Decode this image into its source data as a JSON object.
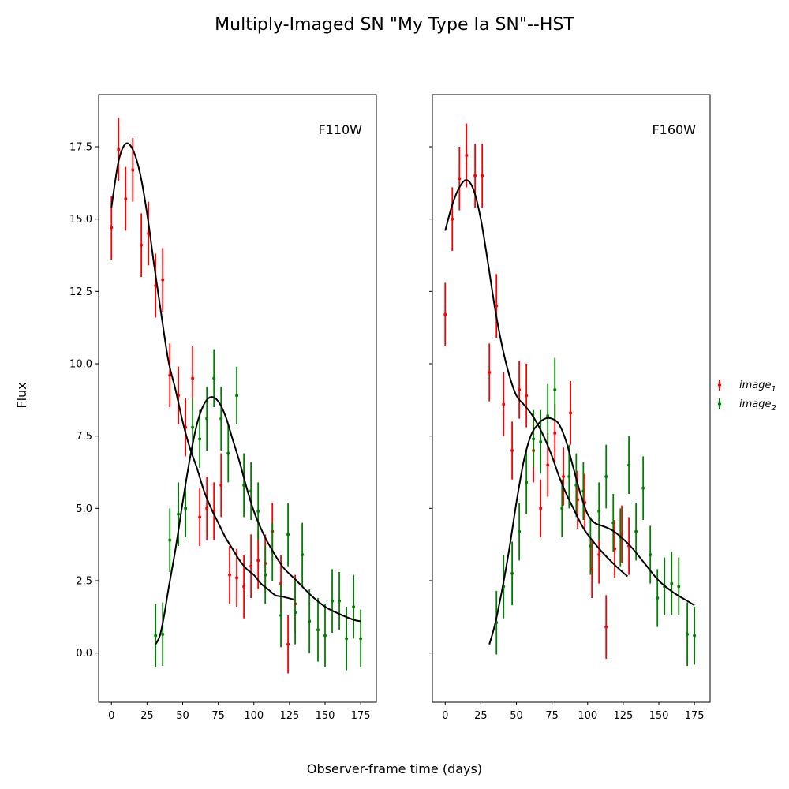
{
  "figure": {
    "title": "Multiply-Imaged SN \"My Type Ia SN\"--HST",
    "xlabel": "Observer-frame time (days)",
    "ylabel": "Flux"
  },
  "legend": {
    "placement": "right-center",
    "entries": [
      {
        "label": "image",
        "sub": "1",
        "color": "#ff0000"
      },
      {
        "label": "image",
        "sub": "2",
        "color": "#008000"
      }
    ]
  },
  "chart_data": [
    {
      "type": "scatter",
      "band": "F110W",
      "xlim": [
        -9,
        186
      ],
      "ylim": [
        -1.7,
        19.3
      ],
      "xticks": [
        0,
        25,
        50,
        75,
        100,
        125,
        150,
        175
      ],
      "yticks": [
        0.0,
        2.5,
        5.0,
        7.5,
        10.0,
        12.5,
        15.0,
        17.5
      ],
      "ytick_labels": [
        "0.0",
        "2.5",
        "5.0",
        "7.5",
        "10.0",
        "12.5",
        "15.0",
        "17.5"
      ],
      "series": [
        {
          "name": "image1",
          "color": "#ff0000",
          "x": [
            0,
            5,
            10,
            15,
            21,
            26,
            31,
            36,
            41,
            47,
            52,
            57,
            62,
            67,
            72,
            77,
            83,
            88,
            93,
            98,
            103,
            108,
            113,
            119,
            124,
            129
          ],
          "y": [
            14.7,
            17.4,
            15.7,
            16.7,
            14.1,
            14.5,
            12.7,
            12.9,
            9.6,
            8.9,
            7.8,
            9.5,
            4.7,
            5.0,
            4.9,
            5.8,
            2.7,
            2.6,
            2.3,
            3.0,
            3.2,
            3.1,
            4.2,
            2.4,
            0.3,
            1.7
          ],
          "err": [
            1.1,
            1.1,
            1.1,
            1.1,
            1.1,
            1.1,
            1.1,
            1.1,
            1.1,
            1.0,
            1.0,
            1.1,
            1.0,
            1.1,
            1.0,
            1.1,
            1.0,
            1.0,
            1.1,
            1.1,
            1.0,
            1.0,
            1.0,
            1.0,
            1.0,
            1.0
          ]
        },
        {
          "name": "image2",
          "color": "#008000",
          "x": [
            31,
            36,
            41,
            47,
            52,
            57,
            62,
            67,
            72,
            77,
            82,
            88,
            93,
            98,
            103,
            108,
            113,
            119,
            124,
            129,
            134,
            139,
            145,
            150,
            155,
            160,
            165,
            170,
            175
          ],
          "y": [
            0.6,
            0.65,
            3.9,
            4.8,
            5.0,
            7.8,
            7.4,
            8.1,
            9.5,
            8.1,
            6.9,
            8.9,
            5.8,
            5.6,
            4.9,
            2.7,
            3.5,
            1.3,
            4.1,
            1.4,
            3.4,
            1.1,
            0.8,
            0.6,
            1.8,
            1.8,
            0.5,
            1.6,
            0.5
          ],
          "err": [
            1.1,
            1.1,
            1.1,
            1.1,
            1.0,
            1.0,
            1.0,
            1.1,
            1.0,
            1.1,
            1.0,
            1.0,
            1.1,
            1.0,
            1.0,
            1.0,
            1.0,
            1.1,
            1.1,
            1.1,
            1.1,
            1.1,
            1.1,
            1.1,
            1.1,
            1.0,
            1.1,
            1.1,
            1.0
          ]
        }
      ],
      "model_curves": [
        {
          "for": "image1",
          "x": [
            0,
            5,
            10,
            15,
            20,
            25,
            30,
            35,
            40,
            45,
            50,
            55,
            60,
            65,
            70,
            75,
            80,
            85,
            90,
            95,
            100,
            105,
            110,
            115,
            120,
            128
          ],
          "y": [
            15.4,
            17.0,
            17.6,
            17.4,
            16.6,
            15.2,
            13.4,
            11.7,
            10.1,
            9.1,
            8.0,
            7.1,
            6.4,
            5.6,
            5.0,
            4.5,
            4.0,
            3.6,
            3.2,
            2.9,
            2.7,
            2.4,
            2.2,
            2.0,
            1.95,
            1.85
          ]
        },
        {
          "for": "image2",
          "x": [
            31,
            34,
            37,
            40,
            45,
            50,
            55,
            60,
            65,
            70,
            75,
            80,
            85,
            90,
            95,
            100,
            105,
            110,
            120,
            130,
            140,
            150,
            160,
            170,
            175
          ],
          "y": [
            0.3,
            0.6,
            1.3,
            2.2,
            3.6,
            5.2,
            6.7,
            7.9,
            8.6,
            8.85,
            8.7,
            8.2,
            7.4,
            6.6,
            5.7,
            4.9,
            4.3,
            3.8,
            3.0,
            2.5,
            2.0,
            1.6,
            1.35,
            1.15,
            1.1
          ]
        }
      ]
    },
    {
      "type": "scatter",
      "band": "F160W",
      "xlim": [
        -9,
        186
      ],
      "ylim": [
        -1.7,
        19.3
      ],
      "xticks": [
        0,
        25,
        50,
        75,
        100,
        125,
        150,
        175
      ],
      "yticks": [
        0.0,
        2.5,
        5.0,
        7.5,
        10.0,
        12.5,
        15.0,
        17.5
      ],
      "series": [
        {
          "name": "image1",
          "color": "#ff0000",
          "x": [
            0,
            5,
            10,
            15,
            21,
            26,
            31,
            36,
            41,
            47,
            52,
            57,
            62,
            67,
            72,
            77,
            83,
            88,
            93,
            98,
            103,
            108,
            113,
            119,
            124,
            129
          ],
          "y": [
            11.7,
            15.0,
            16.4,
            17.2,
            16.5,
            16.5,
            9.7,
            12.0,
            8.6,
            7.0,
            9.1,
            8.9,
            7.0,
            5.0,
            6.5,
            7.6,
            6.1,
            8.3,
            5.3,
            5.2,
            2.9,
            3.4,
            0.9,
            3.6,
            4.1,
            3.7
          ],
          "err": [
            1.1,
            1.1,
            1.1,
            1.1,
            1.1,
            1.1,
            1.0,
            1.1,
            1.1,
            1.0,
            1.0,
            1.1,
            1.1,
            1.0,
            1.1,
            1.0,
            1.0,
            1.1,
            1.0,
            1.0,
            1.0,
            1.0,
            1.1,
            1.0,
            1.0,
            1.0
          ]
        },
        {
          "name": "image2",
          "color": "#008000",
          "x": [
            36,
            41,
            47,
            52,
            57,
            62,
            67,
            72,
            77,
            82,
            87,
            92,
            97,
            102,
            108,
            113,
            118,
            123,
            129,
            134,
            139,
            144,
            149,
            154,
            159,
            164,
            170,
            175
          ],
          "y": [
            1.05,
            2.3,
            2.75,
            4.2,
            5.9,
            7.4,
            7.3,
            8.2,
            9.1,
            5.0,
            6.1,
            5.8,
            5.6,
            3.7,
            4.9,
            6.1,
            4.5,
            4.0,
            6.5,
            4.2,
            5.7,
            3.4,
            1.9,
            2.3,
            2.4,
            2.3,
            0.65,
            0.6
          ],
          "err": [
            1.1,
            1.1,
            1.1,
            1.0,
            1.1,
            1.0,
            1.1,
            1.1,
            1.1,
            1.0,
            1.1,
            1.1,
            1.0,
            1.0,
            1.0,
            1.1,
            1.0,
            1.0,
            1.0,
            1.0,
            1.1,
            1.0,
            1.0,
            1.0,
            1.1,
            1.0,
            1.1,
            1.0
          ]
        }
      ],
      "model_curves": [
        {
          "for": "image1",
          "x": [
            0,
            5,
            10,
            15,
            20,
            25,
            30,
            35,
            40,
            45,
            50,
            55,
            60,
            65,
            70,
            75,
            80,
            85,
            90,
            95,
            100,
            110,
            120,
            128
          ],
          "y": [
            14.6,
            15.5,
            16.1,
            16.35,
            16.0,
            15.0,
            13.5,
            11.9,
            10.6,
            9.6,
            8.9,
            8.6,
            8.3,
            7.9,
            7.4,
            6.8,
            6.1,
            5.5,
            5.0,
            4.5,
            4.1,
            3.5,
            3.0,
            2.65
          ]
        },
        {
          "for": "image2",
          "x": [
            31,
            35,
            40,
            45,
            50,
            55,
            60,
            65,
            70,
            75,
            80,
            85,
            90,
            95,
            100,
            105,
            110,
            115,
            120,
            130,
            140,
            150,
            160,
            170,
            175
          ],
          "y": [
            0.3,
            1.0,
            2.2,
            3.6,
            5.2,
            6.6,
            7.5,
            7.9,
            8.1,
            8.1,
            7.9,
            7.3,
            6.4,
            5.5,
            4.8,
            4.5,
            4.4,
            4.3,
            4.15,
            3.7,
            3.1,
            2.5,
            2.1,
            1.8,
            1.65
          ]
        }
      ]
    }
  ]
}
